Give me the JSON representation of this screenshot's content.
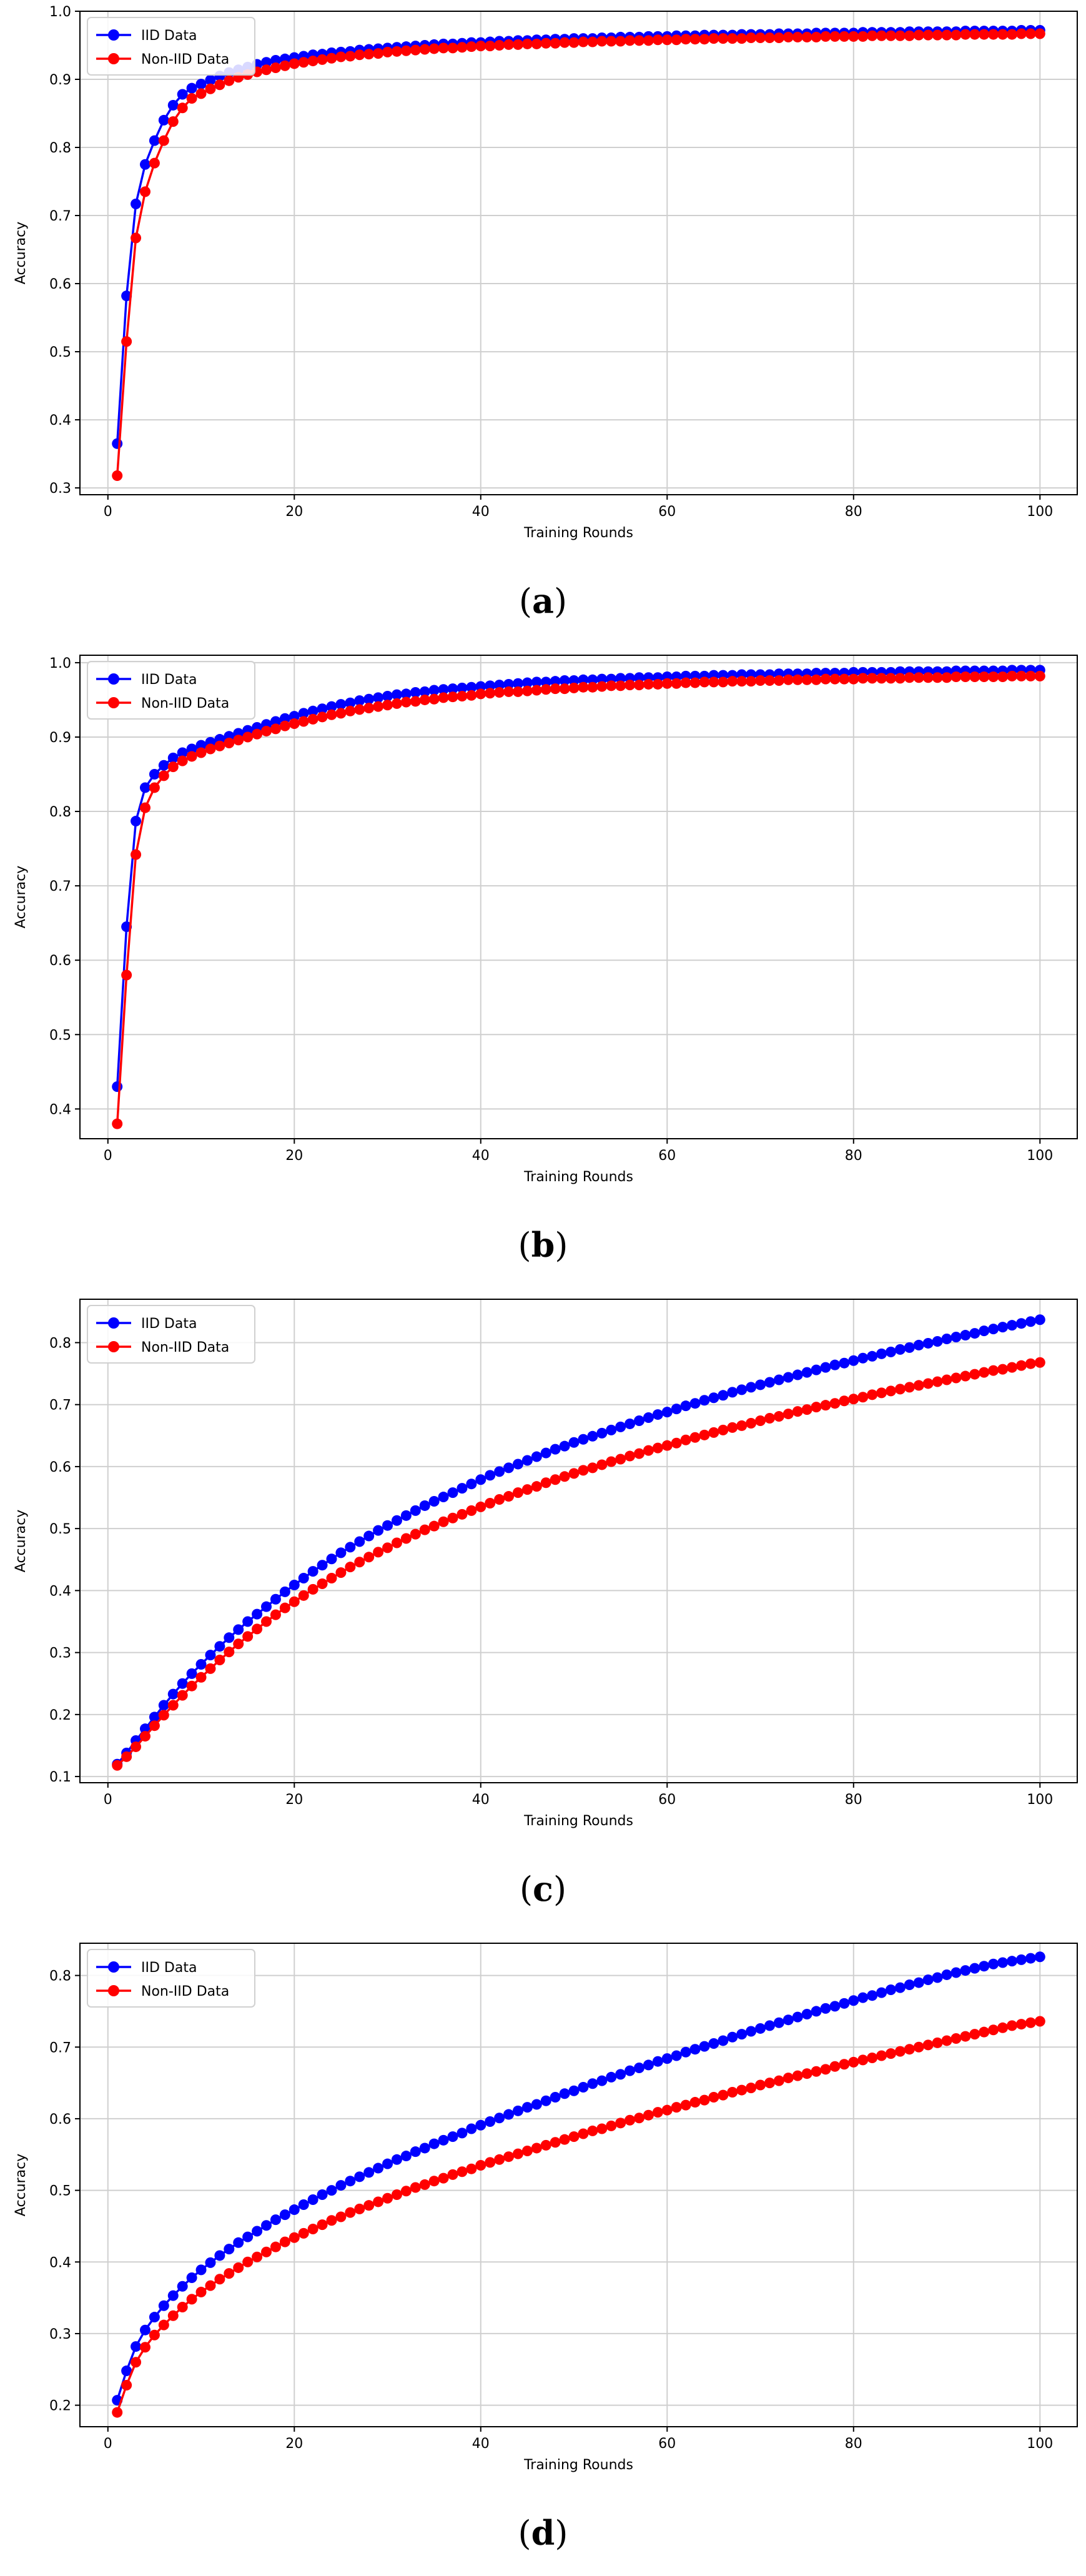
{
  "chart_data": [
    {
      "type": "line",
      "panel_label": "a",
      "xlabel": "Training Rounds",
      "ylabel": "Accuracy",
      "xlim": [
        -3,
        104
      ],
      "ylim": [
        0.29,
        1.0
      ],
      "xticks": [
        0,
        20,
        40,
        60,
        80,
        100
      ],
      "yticks": [
        0.3,
        0.4,
        0.5,
        0.6,
        0.7,
        0.8,
        0.9,
        1.0
      ],
      "grid": true,
      "legend": "top-left",
      "x_range": [
        1,
        100
      ],
      "series": [
        {
          "name": "IID Data",
          "color": "#0000ff",
          "values": [
            0.365,
            0.582,
            0.717,
            0.775,
            0.81,
            0.84,
            0.862,
            0.878,
            0.887,
            0.893,
            0.899,
            0.905,
            0.91,
            0.914,
            0.918,
            0.922,
            0.925,
            0.928,
            0.93,
            0.932,
            0.934,
            0.936,
            0.937,
            0.939,
            0.94,
            0.941,
            0.943,
            0.944,
            0.945,
            0.946,
            0.947,
            0.948,
            0.949,
            0.95,
            0.951,
            0.952,
            0.952,
            0.953,
            0.954,
            0.954,
            0.955,
            0.956,
            0.956,
            0.957,
            0.957,
            0.958,
            0.958,
            0.959,
            0.959,
            0.96,
            0.96,
            0.96,
            0.961,
            0.961,
            0.962,
            0.962,
            0.962,
            0.963,
            0.963,
            0.963,
            0.964,
            0.964,
            0.964,
            0.965,
            0.965,
            0.965,
            0.965,
            0.966,
            0.966,
            0.966,
            0.966,
            0.967,
            0.967,
            0.967,
            0.967,
            0.968,
            0.968,
            0.968,
            0.968,
            0.968,
            0.969,
            0.969,
            0.969,
            0.969,
            0.969,
            0.97,
            0.97,
            0.97,
            0.97,
            0.97,
            0.97,
            0.971,
            0.971,
            0.971,
            0.971,
            0.971,
            0.971,
            0.972,
            0.972,
            0.972
          ]
        },
        {
          "name": "Non-IID Data",
          "color": "#ff0000",
          "values": [
            0.318,
            0.515,
            0.667,
            0.735,
            0.777,
            0.81,
            0.838,
            0.858,
            0.872,
            0.879,
            0.886,
            0.892,
            0.898,
            0.903,
            0.907,
            0.911,
            0.914,
            0.917,
            0.92,
            0.923,
            0.925,
            0.927,
            0.929,
            0.931,
            0.933,
            0.934,
            0.936,
            0.937,
            0.938,
            0.94,
            0.941,
            0.942,
            0.943,
            0.944,
            0.945,
            0.946,
            0.946,
            0.947,
            0.948,
            0.949,
            0.949,
            0.95,
            0.951,
            0.951,
            0.952,
            0.952,
            0.953,
            0.953,
            0.954,
            0.954,
            0.955,
            0.955,
            0.956,
            0.956,
            0.956,
            0.957,
            0.957,
            0.957,
            0.958,
            0.958,
            0.958,
            0.959,
            0.959,
            0.959,
            0.96,
            0.96,
            0.96,
            0.96,
            0.961,
            0.961,
            0.961,
            0.961,
            0.962,
            0.962,
            0.962,
            0.962,
            0.963,
            0.963,
            0.963,
            0.963,
            0.963,
            0.964,
            0.964,
            0.964,
            0.964,
            0.964,
            0.965,
            0.965,
            0.965,
            0.965,
            0.965,
            0.966,
            0.966,
            0.966,
            0.966,
            0.966,
            0.966,
            0.967,
            0.967,
            0.967
          ]
        }
      ]
    },
    {
      "type": "line",
      "panel_label": "b",
      "xlabel": "Training Rounds",
      "ylabel": "Accuracy",
      "xlim": [
        -3,
        104
      ],
      "ylim": [
        0.36,
        1.01
      ],
      "xticks": [
        0,
        20,
        40,
        60,
        80,
        100
      ],
      "yticks": [
        0.4,
        0.5,
        0.6,
        0.7,
        0.8,
        0.9,
        1.0
      ],
      "grid": true,
      "legend": "top-left",
      "x_range": [
        1,
        100
      ],
      "series": [
        {
          "name": "IID Data",
          "color": "#0000ff",
          "values": [
            0.43,
            0.645,
            0.787,
            0.832,
            0.85,
            0.862,
            0.872,
            0.879,
            0.884,
            0.889,
            0.893,
            0.897,
            0.901,
            0.905,
            0.909,
            0.913,
            0.917,
            0.921,
            0.925,
            0.928,
            0.932,
            0.935,
            0.938,
            0.941,
            0.944,
            0.946,
            0.949,
            0.951,
            0.953,
            0.955,
            0.957,
            0.958,
            0.96,
            0.961,
            0.963,
            0.964,
            0.965,
            0.966,
            0.967,
            0.968,
            0.969,
            0.97,
            0.971,
            0.972,
            0.973,
            0.974,
            0.974,
            0.975,
            0.976,
            0.976,
            0.977,
            0.977,
            0.978,
            0.978,
            0.979,
            0.979,
            0.98,
            0.98,
            0.98,
            0.981,
            0.981,
            0.982,
            0.982,
            0.982,
            0.983,
            0.983,
            0.983,
            0.984,
            0.984,
            0.984,
            0.984,
            0.985,
            0.985,
            0.985,
            0.985,
            0.986,
            0.986,
            0.986,
            0.986,
            0.987,
            0.987,
            0.987,
            0.987,
            0.987,
            0.988,
            0.988,
            0.988,
            0.988,
            0.988,
            0.988,
            0.989,
            0.989,
            0.989,
            0.989,
            0.989,
            0.989,
            0.99,
            0.99,
            0.99,
            0.99
          ]
        },
        {
          "name": "Non-IID Data",
          "color": "#ff0000",
          "values": [
            0.38,
            0.58,
            0.742,
            0.805,
            0.832,
            0.848,
            0.86,
            0.868,
            0.874,
            0.879,
            0.884,
            0.888,
            0.892,
            0.896,
            0.9,
            0.904,
            0.908,
            0.911,
            0.915,
            0.918,
            0.921,
            0.924,
            0.927,
            0.93,
            0.932,
            0.935,
            0.937,
            0.939,
            0.941,
            0.943,
            0.945,
            0.947,
            0.948,
            0.95,
            0.951,
            0.953,
            0.954,
            0.955,
            0.956,
            0.958,
            0.959,
            0.96,
            0.961,
            0.961,
            0.962,
            0.963,
            0.964,
            0.965,
            0.965,
            0.966,
            0.967,
            0.967,
            0.968,
            0.969,
            0.969,
            0.97,
            0.97,
            0.971,
            0.971,
            0.972,
            0.972,
            0.973,
            0.973,
            0.974,
            0.974,
            0.974,
            0.975,
            0.975,
            0.975,
            0.976,
            0.976,
            0.976,
            0.977,
            0.977,
            0.977,
            0.977,
            0.978,
            0.978,
            0.978,
            0.978,
            0.979,
            0.979,
            0.979,
            0.979,
            0.979,
            0.98,
            0.98,
            0.98,
            0.98,
            0.98,
            0.981,
            0.981,
            0.981,
            0.981,
            0.981,
            0.981,
            0.982,
            0.982,
            0.982,
            0.982
          ]
        }
      ]
    },
    {
      "type": "line",
      "panel_label": "c",
      "xlabel": "Training Rounds",
      "ylabel": "Accuracy",
      "xlim": [
        -3,
        104
      ],
      "ylim": [
        0.09,
        0.87
      ],
      "xticks": [
        0,
        20,
        40,
        60,
        80,
        100
      ],
      "yticks": [
        0.1,
        0.2,
        0.3,
        0.4,
        0.5,
        0.6,
        0.7,
        0.8
      ],
      "grid": true,
      "legend": "top-left",
      "x_range": [
        1,
        100
      ],
      "series": [
        {
          "name": "IID Data",
          "color": "#0000ff",
          "values": [
            0.12,
            0.138,
            0.158,
            0.177,
            0.196,
            0.215,
            0.233,
            0.25,
            0.266,
            0.281,
            0.296,
            0.31,
            0.324,
            0.337,
            0.35,
            0.362,
            0.374,
            0.386,
            0.398,
            0.409,
            0.42,
            0.431,
            0.441,
            0.451,
            0.461,
            0.47,
            0.479,
            0.488,
            0.497,
            0.505,
            0.513,
            0.521,
            0.529,
            0.537,
            0.544,
            0.551,
            0.558,
            0.565,
            0.572,
            0.579,
            0.586,
            0.592,
            0.598,
            0.604,
            0.61,
            0.616,
            0.622,
            0.628,
            0.633,
            0.639,
            0.644,
            0.649,
            0.654,
            0.659,
            0.664,
            0.669,
            0.674,
            0.679,
            0.684,
            0.688,
            0.693,
            0.698,
            0.702,
            0.707,
            0.711,
            0.715,
            0.72,
            0.724,
            0.728,
            0.732,
            0.736,
            0.74,
            0.744,
            0.748,
            0.752,
            0.756,
            0.76,
            0.764,
            0.767,
            0.771,
            0.775,
            0.778,
            0.782,
            0.785,
            0.789,
            0.792,
            0.796,
            0.799,
            0.802,
            0.806,
            0.809,
            0.812,
            0.815,
            0.819,
            0.822,
            0.825,
            0.828,
            0.831,
            0.834,
            0.837
          ]
        },
        {
          "name": "Non-IID Data",
          "color": "#ff0000",
          "values": [
            0.118,
            0.132,
            0.148,
            0.165,
            0.182,
            0.199,
            0.215,
            0.231,
            0.246,
            0.26,
            0.274,
            0.288,
            0.301,
            0.314,
            0.326,
            0.338,
            0.35,
            0.361,
            0.372,
            0.382,
            0.392,
            0.402,
            0.411,
            0.42,
            0.429,
            0.438,
            0.446,
            0.454,
            0.462,
            0.469,
            0.477,
            0.484,
            0.491,
            0.498,
            0.504,
            0.511,
            0.517,
            0.523,
            0.529,
            0.535,
            0.541,
            0.547,
            0.552,
            0.558,
            0.563,
            0.568,
            0.574,
            0.579,
            0.584,
            0.589,
            0.594,
            0.598,
            0.603,
            0.608,
            0.612,
            0.617,
            0.621,
            0.626,
            0.63,
            0.634,
            0.638,
            0.643,
            0.647,
            0.651,
            0.655,
            0.659,
            0.663,
            0.666,
            0.67,
            0.674,
            0.678,
            0.681,
            0.685,
            0.689,
            0.692,
            0.696,
            0.699,
            0.702,
            0.706,
            0.709,
            0.712,
            0.716,
            0.719,
            0.722,
            0.725,
            0.728,
            0.731,
            0.734,
            0.737,
            0.74,
            0.743,
            0.746,
            0.749,
            0.752,
            0.755,
            0.757,
            0.76,
            0.763,
            0.766,
            0.768
          ]
        }
      ]
    },
    {
      "type": "line",
      "panel_label": "d",
      "xlabel": "Training Rounds",
      "ylabel": "Accuracy",
      "xlim": [
        -3,
        104
      ],
      "ylim": [
        0.17,
        0.845
      ],
      "xticks": [
        0,
        20,
        40,
        60,
        80,
        100
      ],
      "yticks": [
        0.2,
        0.3,
        0.4,
        0.5,
        0.6,
        0.7,
        0.8
      ],
      "grid": true,
      "legend": "top-left",
      "x_range": [
        1,
        100
      ],
      "series": [
        {
          "name": "IID Data",
          "color": "#0000ff",
          "values": [
            0.207,
            0.248,
            0.282,
            0.305,
            0.323,
            0.339,
            0.353,
            0.366,
            0.378,
            0.389,
            0.399,
            0.409,
            0.418,
            0.427,
            0.435,
            0.443,
            0.451,
            0.459,
            0.466,
            0.473,
            0.48,
            0.487,
            0.494,
            0.5,
            0.507,
            0.513,
            0.519,
            0.525,
            0.531,
            0.537,
            0.543,
            0.548,
            0.554,
            0.559,
            0.565,
            0.57,
            0.575,
            0.58,
            0.586,
            0.591,
            0.596,
            0.601,
            0.606,
            0.611,
            0.616,
            0.62,
            0.625,
            0.63,
            0.635,
            0.639,
            0.644,
            0.649,
            0.653,
            0.658,
            0.662,
            0.667,
            0.671,
            0.675,
            0.68,
            0.684,
            0.688,
            0.693,
            0.697,
            0.701,
            0.705,
            0.709,
            0.714,
            0.718,
            0.722,
            0.726,
            0.73,
            0.734,
            0.738,
            0.742,
            0.746,
            0.75,
            0.754,
            0.757,
            0.761,
            0.765,
            0.769,
            0.772,
            0.776,
            0.78,
            0.783,
            0.787,
            0.79,
            0.794,
            0.797,
            0.801,
            0.804,
            0.807,
            0.81,
            0.813,
            0.816,
            0.818,
            0.82,
            0.822,
            0.824,
            0.826
          ]
        },
        {
          "name": "Non-IID Data",
          "color": "#ff0000",
          "values": [
            0.19,
            0.228,
            0.26,
            0.281,
            0.298,
            0.312,
            0.325,
            0.337,
            0.348,
            0.358,
            0.367,
            0.376,
            0.384,
            0.392,
            0.4,
            0.407,
            0.414,
            0.421,
            0.428,
            0.434,
            0.44,
            0.446,
            0.452,
            0.458,
            0.463,
            0.469,
            0.474,
            0.479,
            0.484,
            0.489,
            0.494,
            0.499,
            0.504,
            0.508,
            0.513,
            0.517,
            0.522,
            0.526,
            0.53,
            0.535,
            0.539,
            0.543,
            0.547,
            0.551,
            0.555,
            0.559,
            0.563,
            0.567,
            0.571,
            0.575,
            0.579,
            0.583,
            0.586,
            0.59,
            0.594,
            0.598,
            0.601,
            0.605,
            0.609,
            0.612,
            0.616,
            0.619,
            0.623,
            0.626,
            0.63,
            0.633,
            0.637,
            0.64,
            0.643,
            0.647,
            0.65,
            0.653,
            0.657,
            0.66,
            0.663,
            0.666,
            0.669,
            0.673,
            0.676,
            0.679,
            0.682,
            0.685,
            0.688,
            0.691,
            0.694,
            0.697,
            0.7,
            0.703,
            0.706,
            0.709,
            0.712,
            0.715,
            0.718,
            0.721,
            0.724,
            0.727,
            0.73,
            0.732,
            0.734,
            0.736
          ]
        }
      ]
    }
  ]
}
